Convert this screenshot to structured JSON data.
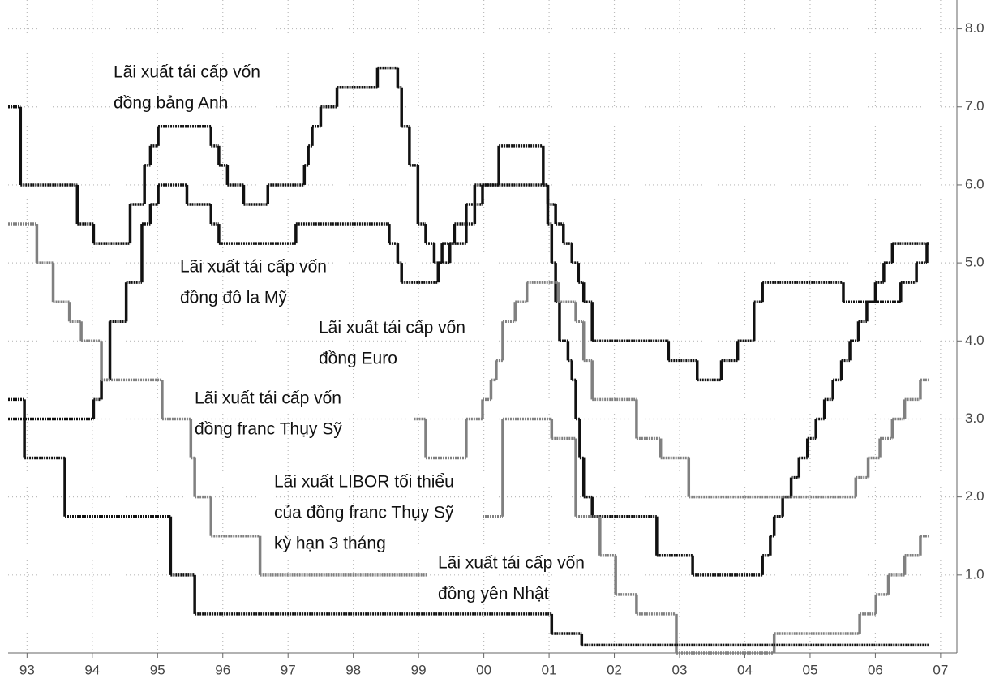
{
  "chart_data": {
    "type": "line",
    "drawstyle": "steps-post",
    "grid": true,
    "xlim": [
      1992.71,
      2007.25
    ],
    "ylim": [
      0,
      8.37
    ],
    "xticks": [
      {
        "value": 1993,
        "label": "93"
      },
      {
        "value": 1994,
        "label": "94"
      },
      {
        "value": 1995,
        "label": "95"
      },
      {
        "value": 1996,
        "label": "96"
      },
      {
        "value": 1997,
        "label": "97"
      },
      {
        "value": 1998,
        "label": "98"
      },
      {
        "value": 1999,
        "label": "99"
      },
      {
        "value": 2000,
        "label": "00"
      },
      {
        "value": 2001,
        "label": "01"
      },
      {
        "value": 2002,
        "label": "02"
      },
      {
        "value": 2003,
        "label": "03"
      },
      {
        "value": 2004,
        "label": "04"
      },
      {
        "value": 2005,
        "label": "05"
      },
      {
        "value": 2006,
        "label": "06"
      },
      {
        "value": 2007,
        "label": "07"
      }
    ],
    "yticks": [
      {
        "value": 1,
        "label": "1.0"
      },
      {
        "value": 2,
        "label": "2.0"
      },
      {
        "value": 3,
        "label": "3.0"
      },
      {
        "value": 4,
        "label": "4.0"
      },
      {
        "value": 5,
        "label": "5.0"
      },
      {
        "value": 6,
        "label": "6.0"
      },
      {
        "value": 7,
        "label": "7.0"
      },
      {
        "value": 8,
        "label": "8.0"
      }
    ],
    "series": [
      {
        "color": "#111111",
        "x": [
          1992.71,
          1992.9,
          1993.77,
          1994.02,
          1994.58,
          1994.8,
          1994.89,
          1995.01,
          1995.82,
          1995.94,
          1996.07,
          1996.32,
          1996.69,
          1997.25,
          1997.31,
          1997.37,
          1997.5,
          1997.75,
          1998.37,
          1998.68,
          1998.74,
          1998.86,
          1998.99,
          1999.11,
          1999.24,
          1999.36,
          1999.55,
          1999.73,
          1999.86,
          2000.98,
          2001.1,
          2001.22,
          2001.35,
          2001.45,
          2001.53,
          2001.66,
          2002.83,
          2003.27,
          2003.64,
          2003.89,
          2004.14,
          2004.27,
          2005.51,
          2006.39,
          2006.63,
          2006.79,
          2006.81
        ],
        "values": [
          7.0,
          6.0,
          5.5,
          5.25,
          5.75,
          6.25,
          6.5,
          6.75,
          6.5,
          6.25,
          6.0,
          5.75,
          6.0,
          6.25,
          6.5,
          6.75,
          7.0,
          7.25,
          7.5,
          7.25,
          6.75,
          6.25,
          5.5,
          5.25,
          5.0,
          5.25,
          5.5,
          5.75,
          6.0,
          5.75,
          5.5,
          5.25,
          5.0,
          4.75,
          4.5,
          4.0,
          3.75,
          3.5,
          3.75,
          4.0,
          4.5,
          4.75,
          4.5,
          4.75,
          5.0,
          5.25,
          5.25
        ]
      },
      {
        "color": "#111111",
        "x": [
          1992.71,
          1994.02,
          1994.14,
          1994.27,
          1994.52,
          1994.76,
          1994.89,
          1995.01,
          1995.45,
          1995.82,
          1995.94,
          1997.12,
          1998.55,
          1998.68,
          1998.74,
          1999.3,
          1999.48,
          1999.73,
          1999.86,
          1999.98,
          2000.23,
          2000.91,
          2000.98,
          2001.04,
          2001.1,
          2001.16,
          2001.29,
          2001.35,
          2001.41,
          2001.47,
          2001.53,
          2001.66,
          2002.65,
          2003.2,
          2004.27,
          2004.39,
          2004.45,
          2004.58,
          2004.71,
          2004.83,
          2004.96,
          2005.09,
          2005.22,
          2005.35,
          2005.48,
          2005.61,
          2005.74,
          2005.87,
          2006.0,
          2006.13,
          2006.26,
          2006.81
        ],
        "values": [
          3.0,
          3.25,
          3.5,
          4.25,
          4.75,
          5.5,
          5.75,
          6.0,
          5.75,
          5.5,
          5.25,
          5.5,
          5.25,
          5.0,
          4.75,
          5.0,
          5.25,
          5.5,
          5.75,
          6.0,
          6.5,
          6.0,
          5.5,
          5.0,
          4.5,
          4.0,
          3.75,
          3.5,
          3.0,
          2.5,
          2.0,
          1.75,
          1.25,
          1.0,
          1.25,
          1.5,
          1.75,
          2.0,
          2.25,
          2.5,
          2.75,
          3.0,
          3.25,
          3.5,
          3.75,
          4.0,
          4.25,
          4.5,
          4.75,
          5.0,
          5.25,
          5.25
        ]
      },
      {
        "color": "#808080",
        "x": [
          1998.93,
          1999.11,
          1999.73,
          1999.98,
          2000.11,
          2000.19,
          2000.29,
          2000.48,
          2000.66,
          2001.14,
          2001.41,
          2001.53,
          2001.66,
          2002.34,
          2002.71,
          2003.14,
          2005.7,
          2005.89,
          2006.07,
          2006.26,
          2006.45,
          2006.69,
          2006.81
        ],
        "values": [
          3.0,
          2.5,
          3.0,
          3.25,
          3.5,
          3.75,
          4.25,
          4.5,
          4.75,
          4.5,
          4.25,
          3.75,
          3.25,
          2.75,
          2.5,
          2.0,
          2.25,
          2.5,
          2.75,
          3.0,
          3.25,
          3.5,
          3.5
        ]
      },
      {
        "color": "#808080",
        "x": [
          1992.71,
          1993.15,
          1993.4,
          1993.65,
          1993.83,
          1994.14,
          1995.07,
          1995.51,
          1995.57,
          1995.82,
          1996.57,
          1999.11
        ],
        "values": [
          5.5,
          5.0,
          4.5,
          4.25,
          4.0,
          3.5,
          3.0,
          2.5,
          2.0,
          1.5,
          1.0,
          1.0
        ]
      },
      {
        "color": "#808080",
        "x": [
          1999.98,
          2000.29,
          2001.04,
          2001.41,
          2001.78,
          2002.02,
          2002.34,
          2002.95,
          2004.45,
          2005.76,
          2006.01,
          2006.2,
          2006.45,
          2006.69,
          2006.81
        ],
        "values": [
          1.75,
          3.0,
          2.75,
          1.75,
          1.25,
          0.75,
          0.5,
          0.0,
          0.25,
          0.5,
          0.75,
          1.0,
          1.25,
          1.5,
          1.5
        ]
      },
      {
        "color": "#111111",
        "x": [
          1992.71,
          1992.96,
          1993.58,
          1995.2,
          1995.57,
          2001.04,
          2001.5,
          2006.81
        ],
        "values": [
          3.25,
          2.5,
          1.75,
          1.0,
          0.5,
          0.25,
          0.1,
          0.1
        ]
      }
    ],
    "annotations": [
      [
        "Lãi xuất tái cấp vốn",
        "đồng bảng Anh"
      ],
      [
        "Lãi xuất tái cấp vốn",
        "đồng đô la Mỹ"
      ],
      [
        "Lãi xuất tái cấp vốn",
        "đồng Euro"
      ],
      [
        "Lãi xuất tái cấp vốn",
        "đồng franc Thụy Sỹ"
      ],
      [
        "Lãi xuất LIBOR tối thiểu",
        "của đồng franc Thụy Sỹ",
        "kỳ hạn 3 tháng"
      ],
      [
        "Lãi xuất tái cấp vốn",
        "đồng yên Nhật"
      ]
    ]
  }
}
